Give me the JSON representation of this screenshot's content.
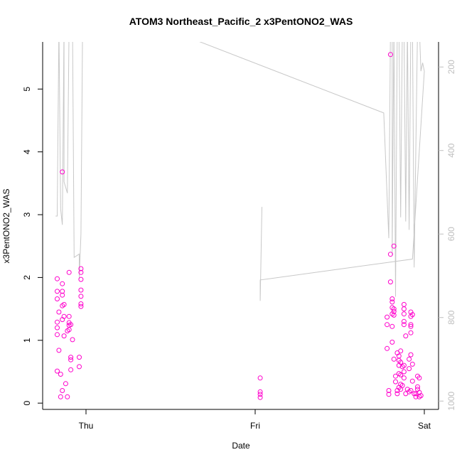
{
  "chart_data": {
    "type": "scatter",
    "title": "ATOM3 Northeast_Pacific_2 x3PentONO2_WAS",
    "xlabel": "Date",
    "ylabel": "x3PentONO2_WAS",
    "x_ticks": [
      "Thu",
      "Fri",
      "Sat"
    ],
    "y_ticks": [
      "0",
      "1",
      "2",
      "3",
      "4",
      "5"
    ],
    "y2_ticks": [
      "200",
      "400",
      "600",
      "800",
      "1000"
    ],
    "ylim": [
      -0.1,
      5.75
    ],
    "y2lim": [
      1020,
      140
    ],
    "y2_reversed": true,
    "grid": false,
    "colors": {
      "points": "#ff00cc",
      "altitude_line": "#c8c8c8",
      "right_axis": "#bebebe"
    },
    "series": [
      {
        "type": "scatter",
        "points": [
          [
            -0.17,
            1.98
          ],
          [
            -0.17,
            1.78
          ],
          [
            -0.17,
            1.66
          ],
          [
            -0.17,
            1.29
          ],
          [
            -0.17,
            1.2
          ],
          [
            -0.17,
            1.09
          ],
          [
            -0.17,
            0.51
          ],
          [
            -0.16,
            1.45
          ],
          [
            -0.16,
            0.84
          ],
          [
            -0.15,
            0.46
          ],
          [
            -0.15,
            0.1
          ],
          [
            -0.14,
            1.9
          ],
          [
            -0.14,
            1.78
          ],
          [
            -0.14,
            1.72
          ],
          [
            -0.14,
            1.55
          ],
          [
            -0.14,
            1.33
          ],
          [
            -0.14,
            0.2
          ],
          [
            -0.14,
            3.68
          ],
          [
            -0.13,
            1.57
          ],
          [
            -0.13,
            1.38
          ],
          [
            -0.13,
            1.07
          ],
          [
            -0.12,
            0.31
          ],
          [
            -0.11,
            1.15
          ],
          [
            -0.11,
            0.1
          ],
          [
            -0.1,
            2.08
          ],
          [
            -0.1,
            1.38
          ],
          [
            -0.1,
            1.28
          ],
          [
            -0.1,
            1.24
          ],
          [
            -0.1,
            1.17
          ],
          [
            -0.09,
            1.25
          ],
          [
            -0.09,
            0.73
          ],
          [
            -0.09,
            0.69
          ],
          [
            -0.09,
            0.53
          ],
          [
            -0.08,
            1.01
          ],
          [
            -0.03,
            2.14
          ],
          [
            -0.03,
            2.08
          ],
          [
            -0.03,
            1.97
          ],
          [
            -0.03,
            1.8
          ],
          [
            -0.03,
            1.7
          ],
          [
            -0.03,
            1.58
          ],
          [
            -0.03,
            1.54
          ],
          [
            -0.04,
            0.73
          ],
          [
            -0.04,
            0.58
          ],
          [
            1.03,
            0.4
          ],
          [
            1.03,
            0.18
          ],
          [
            1.03,
            0.14
          ],
          [
            1.03,
            0.09
          ],
          [
            1.78,
            1.37
          ],
          [
            1.78,
            1.25
          ],
          [
            1.78,
            0.87
          ],
          [
            1.79,
            0.2
          ],
          [
            1.79,
            0.14
          ],
          [
            1.8,
            5.55
          ],
          [
            1.8,
            1.93
          ],
          [
            1.8,
            2.37
          ],
          [
            1.81,
            1.66
          ],
          [
            1.81,
            1.61
          ],
          [
            1.81,
            1.52
          ],
          [
            1.81,
            1.42
          ],
          [
            1.81,
            1.22
          ],
          [
            1.81,
            0.97
          ],
          [
            1.82,
            1.5
          ],
          [
            1.82,
            1.46
          ],
          [
            1.82,
            1.4
          ],
          [
            1.82,
            0.7
          ],
          [
            1.82,
            2.5
          ],
          [
            1.83,
            0.43
          ],
          [
            1.83,
            0.34
          ],
          [
            1.84,
            0.8
          ],
          [
            1.84,
            0.2
          ],
          [
            1.84,
            0.15
          ],
          [
            1.85,
            0.75
          ],
          [
            1.85,
            0.68
          ],
          [
            1.85,
            0.6
          ],
          [
            1.85,
            0.47
          ],
          [
            1.85,
            0.25
          ],
          [
            1.86,
            0.83
          ],
          [
            1.86,
            0.65
          ],
          [
            1.86,
            0.45
          ],
          [
            1.86,
            0.3
          ],
          [
            1.86,
            0.22
          ],
          [
            1.87,
            0.58
          ],
          [
            1.87,
            0.28
          ],
          [
            1.88,
            1.57
          ],
          [
            1.88,
            1.5
          ],
          [
            1.88,
            1.42
          ],
          [
            1.88,
            1.3
          ],
          [
            1.88,
            1.25
          ],
          [
            1.88,
            0.6
          ],
          [
            1.88,
            0.5
          ],
          [
            1.88,
            0.4
          ],
          [
            1.89,
            1.07
          ],
          [
            1.89,
            0.15
          ],
          [
            1.9,
            0.22
          ],
          [
            1.91,
            0.7
          ],
          [
            1.91,
            0.55
          ],
          [
            1.91,
            0.18
          ],
          [
            1.92,
            1.45
          ],
          [
            1.92,
            1.38
          ],
          [
            1.92,
            1.25
          ],
          [
            1.92,
            1.22
          ],
          [
            1.92,
            1.12
          ],
          [
            1.92,
            0.77
          ],
          [
            1.92,
            0.2
          ],
          [
            1.93,
            1.41
          ],
          [
            1.93,
            0.62
          ],
          [
            1.93,
            0.35
          ],
          [
            1.94,
            0.15
          ],
          [
            1.95,
            0.15
          ],
          [
            1.95,
            0.1
          ],
          [
            1.96,
            0.43
          ],
          [
            1.96,
            0.26
          ],
          [
            1.96,
            0.22
          ],
          [
            1.97,
            0.4
          ],
          [
            1.97,
            0.17
          ],
          [
            1.97,
            0.1
          ],
          [
            1.98,
            0.12
          ]
        ]
      },
      {
        "type": "line",
        "note": "altitude trace on right axis",
        "points": [
          [
            -0.18,
            557
          ],
          [
            -0.17,
            557
          ],
          [
            -0.16,
            100
          ],
          [
            -0.15,
            540
          ],
          [
            -0.14,
            578
          ],
          [
            -0.13,
            100
          ],
          [
            -0.13,
            475
          ],
          [
            -0.11,
            502
          ],
          [
            -0.1,
            100
          ],
          [
            -0.08,
            100
          ],
          [
            -0.07,
            656
          ],
          [
            -0.04,
            648
          ],
          [
            -0.04,
            700
          ],
          [
            -0.04,
            706
          ],
          [
            -0.03,
            600
          ],
          [
            -0.02,
            100
          ],
          [
            0.0,
            100
          ],
          [
            0.58,
            125
          ],
          [
            1.76,
            310
          ],
          [
            1.79,
            610
          ],
          [
            1.8,
            100
          ],
          [
            1.81,
            100
          ],
          [
            1.81,
            650
          ],
          [
            1.82,
            100
          ],
          [
            1.82,
            100
          ],
          [
            1.83,
            750
          ],
          [
            1.84,
            110
          ],
          [
            1.85,
            110
          ],
          [
            1.86,
            560
          ],
          [
            1.87,
            100
          ],
          [
            1.88,
            100
          ],
          [
            1.89,
            570
          ],
          [
            1.9,
            100
          ],
          [
            1.91,
            590
          ],
          [
            1.92,
            100
          ],
          [
            1.93,
            100
          ],
          [
            1.94,
            680
          ],
          [
            1.96,
            100
          ],
          [
            1.97,
            100
          ],
          [
            1.98,
            210
          ],
          [
            1.99,
            190
          ],
          [
            2.0,
            210
          ],
          [
            1.93,
            660
          ],
          [
            1.03,
            710
          ],
          [
            1.03,
            760
          ],
          [
            1.04,
            535
          ]
        ]
      }
    ]
  }
}
